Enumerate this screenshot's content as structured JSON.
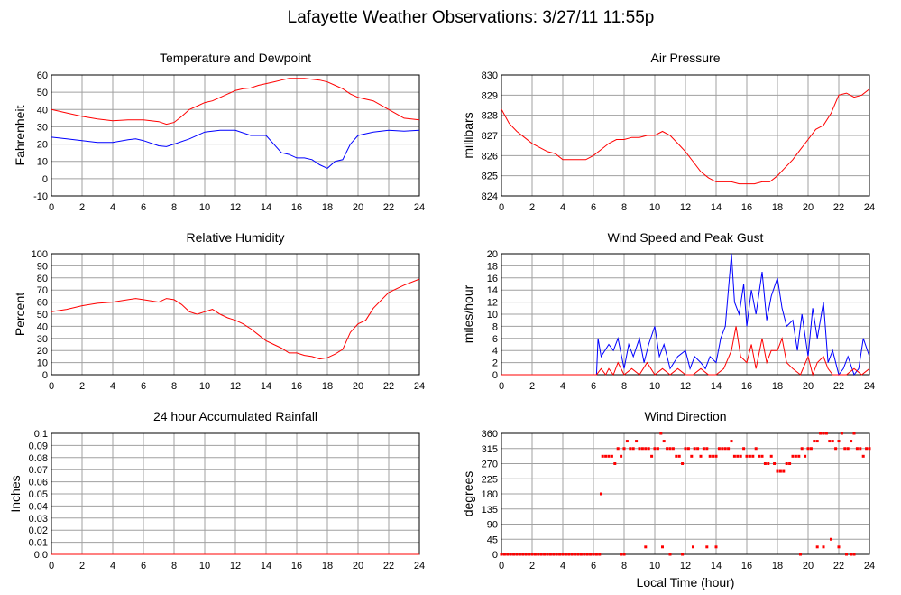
{
  "page": {
    "title": "Lafayette Weather Observations: 3/27/11 11:55p",
    "xlabel": "Local Time (hour)"
  },
  "colors": {
    "red": "#ff0000",
    "blue": "#0000ff",
    "grid": "#a0a0a0"
  },
  "chart_data": [
    {
      "id": "temp",
      "type": "line",
      "title": "Temperature and Dewpoint",
      "xlabel": "",
      "ylabel": "Fahrenheit",
      "xlim": [
        0,
        24
      ],
      "ylim": [
        -10,
        60
      ],
      "xticks": [
        0,
        2,
        4,
        6,
        8,
        10,
        12,
        14,
        16,
        18,
        20,
        22,
        24
      ],
      "yticks": [
        -10,
        0,
        10,
        20,
        30,
        40,
        50,
        60
      ],
      "grid": true,
      "series": [
        {
          "color": "#ff0000",
          "x": [
            0,
            1,
            2,
            3,
            4,
            5,
            6,
            7,
            7.5,
            8,
            8.5,
            9,
            9.5,
            10,
            10.5,
            11,
            11.5,
            12,
            12.5,
            13,
            13.5,
            14,
            14.5,
            15,
            15.5,
            16,
            16.5,
            17,
            17.5,
            18,
            18.5,
            19,
            19.5,
            20,
            21,
            22,
            23,
            24
          ],
          "y": [
            40,
            38,
            36,
            34.5,
            33.5,
            34,
            34,
            33,
            31.5,
            32.5,
            36,
            40,
            42,
            44,
            45,
            47,
            49,
            51,
            52,
            52.5,
            54,
            55,
            56,
            57,
            58,
            58,
            58,
            57.5,
            57,
            56,
            54,
            52,
            49,
            47,
            45,
            40,
            35,
            34
          ]
        },
        {
          "color": "#0000ff",
          "x": [
            0,
            1,
            2,
            3,
            4,
            5,
            5.5,
            6,
            7,
            7.5,
            8,
            9,
            10,
            11,
            12,
            13,
            13.5,
            14,
            14.5,
            15,
            15.5,
            16,
            16.5,
            17,
            17.5,
            18,
            18.5,
            19,
            19.5,
            20,
            21,
            22,
            23,
            24
          ],
          "y": [
            24,
            23,
            22,
            21,
            21,
            22.5,
            23,
            22,
            19,
            18.5,
            20,
            23,
            27,
            28,
            28,
            25,
            25,
            25,
            20,
            15,
            14,
            12,
            12,
            11,
            8,
            6,
            10,
            11,
            20,
            25,
            27,
            28,
            27.5,
            28
          ]
        }
      ]
    },
    {
      "id": "pressure",
      "type": "line",
      "title": "Air Pressure",
      "xlabel": "",
      "ylabel": "millibars",
      "xlim": [
        0,
        24
      ],
      "ylim": [
        824,
        830
      ],
      "xticks": [
        0,
        2,
        4,
        6,
        8,
        10,
        12,
        14,
        16,
        18,
        20,
        22,
        24
      ],
      "yticks": [
        824,
        825,
        826,
        827,
        828,
        829,
        830
      ],
      "grid": true,
      "series": [
        {
          "color": "#ff0000",
          "x": [
            0,
            0.5,
            1,
            1.5,
            2,
            2.5,
            3,
            3.5,
            4,
            4.5,
            5,
            5.5,
            6,
            6.5,
            7,
            7.5,
            8,
            8.5,
            9,
            9.5,
            10,
            10.5,
            11,
            11.5,
            12,
            12.5,
            13,
            13.5,
            14,
            14.5,
            15,
            15.5,
            16,
            16.5,
            17,
            17.5,
            18,
            18.5,
            19,
            19.5,
            20,
            20.5,
            21,
            21.5,
            22,
            22.5,
            23,
            23.5,
            24
          ],
          "y": [
            828.3,
            827.6,
            827.2,
            826.9,
            826.6,
            826.4,
            826.2,
            826.1,
            825.8,
            825.8,
            825.8,
            825.8,
            826.0,
            826.3,
            826.6,
            826.8,
            826.8,
            826.9,
            826.9,
            827.0,
            827.0,
            827.2,
            827.0,
            826.6,
            826.2,
            825.7,
            825.2,
            824.9,
            824.7,
            824.7,
            824.7,
            824.6,
            824.6,
            824.6,
            824.7,
            824.7,
            825.0,
            825.4,
            825.8,
            826.3,
            826.8,
            827.3,
            827.5,
            828.1,
            829.0,
            829.1,
            828.9,
            829.0,
            829.3
          ]
        }
      ]
    },
    {
      "id": "humidity",
      "type": "line",
      "title": "Relative Humidity",
      "xlabel": "",
      "ylabel": "Percent",
      "xlim": [
        0,
        24
      ],
      "ylim": [
        0,
        100
      ],
      "xticks": [
        0,
        2,
        4,
        6,
        8,
        10,
        12,
        14,
        16,
        18,
        20,
        22,
        24
      ],
      "yticks": [
        0,
        10,
        20,
        30,
        40,
        50,
        60,
        70,
        80,
        90,
        100
      ],
      "grid": true,
      "series": [
        {
          "color": "#ff0000",
          "x": [
            0,
            1,
            2,
            3,
            4,
            5,
            5.5,
            6,
            7,
            7.5,
            8,
            8.5,
            9,
            9.5,
            10,
            10.5,
            11,
            11.5,
            12,
            12.5,
            13,
            13.5,
            14,
            14.5,
            15,
            15.5,
            16,
            16.5,
            17,
            17.5,
            18,
            18.5,
            19,
            19.5,
            20,
            20.5,
            21,
            22,
            23,
            24
          ],
          "y": [
            52,
            54,
            57,
            59,
            60,
            62,
            63,
            62,
            60,
            63,
            62,
            58,
            52,
            50,
            52,
            54,
            50,
            47,
            45,
            42,
            38,
            33,
            28,
            25,
            22,
            18,
            18,
            16,
            15,
            13,
            14,
            17,
            21,
            35,
            42,
            45,
            55,
            68,
            74,
            79
          ]
        }
      ]
    },
    {
      "id": "wind",
      "type": "line",
      "title": "Wind Speed and Peak Gust",
      "xlabel": "",
      "ylabel": "miles/hour",
      "xlim": [
        0,
        24
      ],
      "ylim": [
        0,
        20
      ],
      "xticks": [
        0,
        2,
        4,
        6,
        8,
        10,
        12,
        14,
        16,
        18,
        20,
        22,
        24
      ],
      "yticks": [
        0,
        2,
        4,
        6,
        8,
        10,
        12,
        14,
        16,
        18,
        20
      ],
      "grid": true,
      "series": [
        {
          "color": "#0000ff",
          "x": [
            0,
            6.2,
            6.3,
            6.5,
            7,
            7.3,
            7.6,
            8,
            8.3,
            8.6,
            9,
            9.3,
            9.6,
            10,
            10.3,
            10.6,
            11,
            11.5,
            12,
            12.3,
            12.6,
            13,
            13.3,
            13.6,
            14,
            14.3,
            14.6,
            15,
            15.2,
            15.5,
            15.8,
            16,
            16.3,
            16.6,
            17,
            17.3,
            17.6,
            18,
            18.3,
            18.6,
            19,
            19.3,
            19.6,
            20,
            20.3,
            20.6,
            21,
            21.3,
            21.6,
            22,
            22.3,
            22.6,
            23,
            23.3,
            23.6,
            24
          ],
          "y": [
            0,
            0,
            6,
            3,
            5,
            4,
            6,
            1,
            5,
            3,
            6,
            2,
            5,
            8,
            3,
            5,
            1,
            3,
            4,
            1,
            3,
            2,
            1,
            3,
            2,
            6,
            8,
            20,
            12,
            10,
            15,
            8,
            14,
            10,
            17,
            9,
            13,
            16,
            11,
            8,
            9,
            4,
            10,
            3,
            11,
            6,
            12,
            2,
            4,
            0,
            1,
            3,
            0,
            1,
            6,
            3
          ]
        },
        {
          "color": "#ff0000",
          "x": [
            0,
            6.2,
            6.5,
            6.8,
            7,
            7.3,
            7.6,
            8,
            8.5,
            9,
            9.5,
            10,
            10.5,
            11,
            11.5,
            12,
            12.5,
            13,
            13.5,
            14,
            14.5,
            15,
            15.3,
            15.6,
            16,
            16.3,
            16.6,
            17,
            17.3,
            17.6,
            18,
            18.3,
            18.6,
            19,
            19.5,
            20,
            20.3,
            20.6,
            21,
            21.3,
            21.6,
            22,
            22.5,
            23,
            23.5,
            24
          ],
          "y": [
            0,
            0,
            1,
            0,
            1,
            0,
            2,
            0,
            1,
            0,
            2,
            0,
            1,
            0,
            1,
            0,
            0,
            1,
            0,
            0,
            1,
            4,
            8,
            3,
            2,
            5,
            1,
            6,
            2,
            4,
            4,
            6,
            2,
            1,
            0,
            3,
            0,
            2,
            3,
            1,
            0,
            0,
            0,
            1,
            0,
            1
          ]
        }
      ]
    },
    {
      "id": "rain",
      "type": "line",
      "title": "24 hour Accumulated Rainfall",
      "xlabel": "",
      "ylabel": "Inches",
      "xlim": [
        0,
        24
      ],
      "ylim": [
        0,
        0.1
      ],
      "xticks": [
        0,
        2,
        4,
        6,
        8,
        10,
        12,
        14,
        16,
        18,
        20,
        22,
        24
      ],
      "yticks": [
        0.0,
        0.01,
        0.02,
        0.03,
        0.04,
        0.05,
        0.06,
        0.07,
        0.08,
        0.09,
        0.1
      ],
      "ytick_labels": [
        "0.0",
        "0.01",
        "0.02",
        "0.03",
        "0.04",
        "0.05",
        "0.06",
        "0.07",
        "0.08",
        "0.09",
        "0.1"
      ],
      "grid": true,
      "series": [
        {
          "color": "#ff0000",
          "x": [
            0,
            24
          ],
          "y": [
            0,
            0
          ]
        }
      ]
    },
    {
      "id": "direction",
      "type": "scatter",
      "title": "Wind Direction",
      "xlabel": "Local Time (hour)",
      "ylabel": "degrees",
      "xlim": [
        0,
        24
      ],
      "ylim": [
        0,
        360
      ],
      "xticks": [
        0,
        2,
        4,
        6,
        8,
        10,
        12,
        14,
        16,
        18,
        20,
        22,
        24
      ],
      "yticks": [
        0,
        45,
        90,
        135,
        180,
        225,
        270,
        315,
        360
      ],
      "grid": true,
      "series": [
        {
          "color": "#ff0000",
          "x": [
            0,
            0.2,
            0.4,
            0.6,
            0.8,
            1,
            1.2,
            1.4,
            1.6,
            1.8,
            2,
            2.2,
            2.4,
            2.6,
            2.8,
            3,
            3.2,
            3.4,
            3.6,
            3.8,
            4,
            4.2,
            4.4,
            4.6,
            4.8,
            5,
            5.2,
            5.4,
            5.6,
            5.8,
            6,
            6.2,
            6.4,
            6.5,
            6.6,
            6.8,
            7,
            7.2,
            7.4,
            7.6,
            7.8,
            8,
            8.2,
            8.4,
            8.6,
            8.8,
            9,
            9.2,
            9.4,
            9.6,
            9.8,
            10,
            10.2,
            10.4,
            10.6,
            10.8,
            11,
            11.2,
            11.4,
            11.6,
            11.8,
            12,
            12.2,
            12.4,
            12.6,
            12.8,
            13,
            13.2,
            13.4,
            13.6,
            13.8,
            14,
            14.2,
            14.4,
            14.6,
            14.8,
            15,
            15.2,
            15.4,
            15.6,
            15.8,
            16,
            16.2,
            16.4,
            16.6,
            16.8,
            17,
            17.2,
            17.4,
            17.6,
            17.8,
            18,
            18.2,
            18.4,
            18.6,
            18.8,
            19,
            19.2,
            19.4,
            19.6,
            19.8,
            20,
            20.2,
            20.4,
            20.6,
            20.8,
            21,
            21.2,
            21.4,
            21.6,
            21.8,
            22,
            22.2,
            22.4,
            22.6,
            22.8,
            23,
            23.2,
            23.4,
            23.6,
            23.8,
            24,
            7.8,
            8.0,
            9.4,
            10.5,
            11.0,
            11.8,
            12.5,
            13.4,
            14.0,
            19.5,
            20.6,
            21.0,
            21.5,
            22.0,
            22.5,
            22.8,
            23.0
          ],
          "y": [
            0,
            0,
            0,
            0,
            0,
            0,
            0,
            0,
            0,
            0,
            0,
            0,
            0,
            0,
            0,
            0,
            0,
            0,
            0,
            0,
            0,
            0,
            0,
            0,
            0,
            0,
            0,
            0,
            0,
            0,
            0,
            0,
            0,
            180,
            292,
            292,
            292,
            292,
            270,
            315,
            292,
            315,
            337,
            315,
            315,
            337,
            315,
            315,
            315,
            315,
            292,
            315,
            315,
            360,
            337,
            315,
            315,
            315,
            292,
            292,
            270,
            315,
            315,
            292,
            315,
            315,
            292,
            315,
            315,
            292,
            292,
            292,
            315,
            315,
            315,
            315,
            337,
            292,
            292,
            292,
            315,
            292,
            292,
            292,
            315,
            292,
            292,
            270,
            270,
            292,
            270,
            247,
            247,
            247,
            270,
            270,
            292,
            292,
            292,
            315,
            292,
            315,
            315,
            337,
            337,
            360,
            360,
            360,
            337,
            337,
            315,
            337,
            360,
            315,
            315,
            337,
            360,
            315,
            315,
            292,
            315,
            315,
            0,
            0,
            22,
            22,
            0,
            0,
            22,
            22,
            22,
            0,
            22,
            22,
            45,
            22,
            0,
            0,
            0
          ]
        }
      ]
    }
  ]
}
